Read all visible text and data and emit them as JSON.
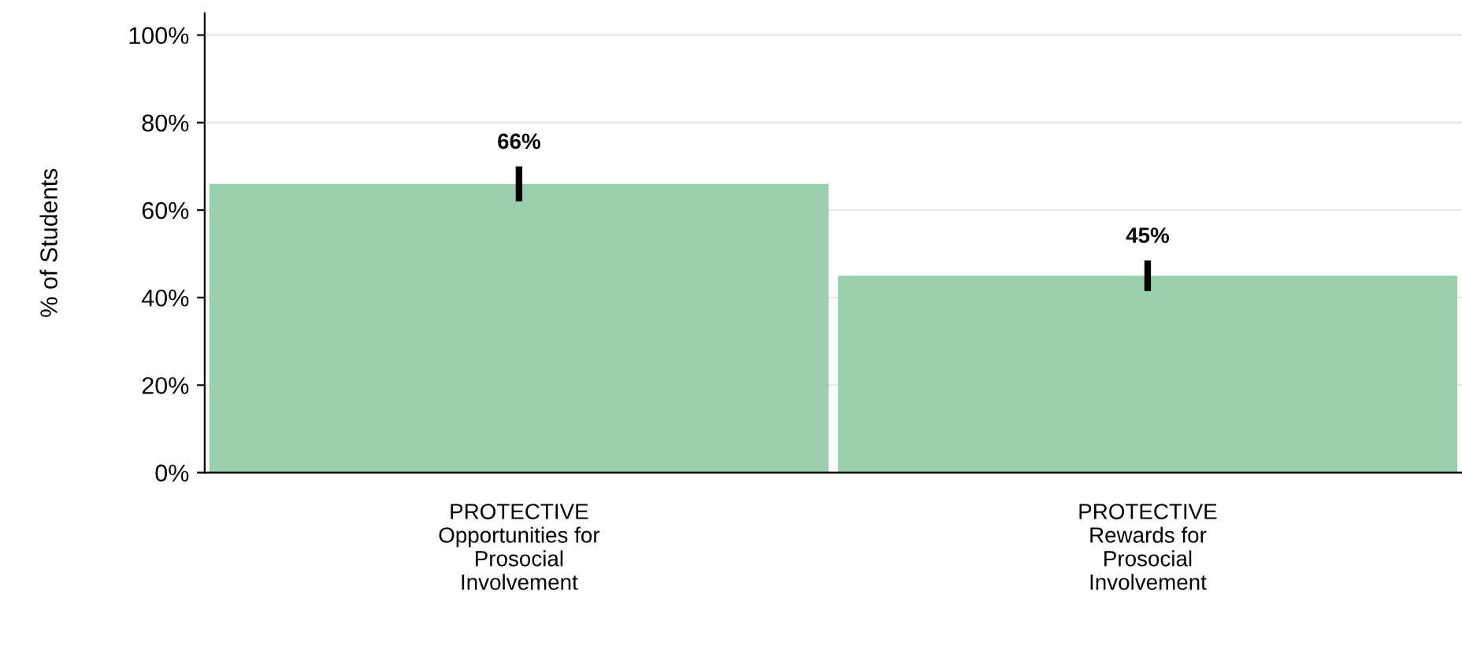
{
  "chart_data": {
    "type": "bar",
    "ylabel": "% of Students",
    "categories": [
      "PROTECTIVE\nOpportunities for\nProsocial\nInvolvement",
      "PROTECTIVE\nRewards for\nProsocial\nInvolvement"
    ],
    "values": [
      66,
      45
    ],
    "color": "#9acfac",
    "errors": [
      [
        62,
        70
      ],
      [
        41.5,
        48.5
      ]
    ],
    "value_labels": [
      "66%",
      "45%"
    ],
    "ylim": [
      0,
      105
    ],
    "yticks": [
      {
        "value": 0,
        "label": "0%"
      },
      {
        "value": 20,
        "label": "20%"
      },
      {
        "value": 40,
        "label": "40%"
      },
      {
        "value": 60,
        "label": "60%"
      },
      {
        "value": 80,
        "label": "80%"
      },
      {
        "value": 100,
        "label": "100%"
      }
    ],
    "grid": "y"
  }
}
